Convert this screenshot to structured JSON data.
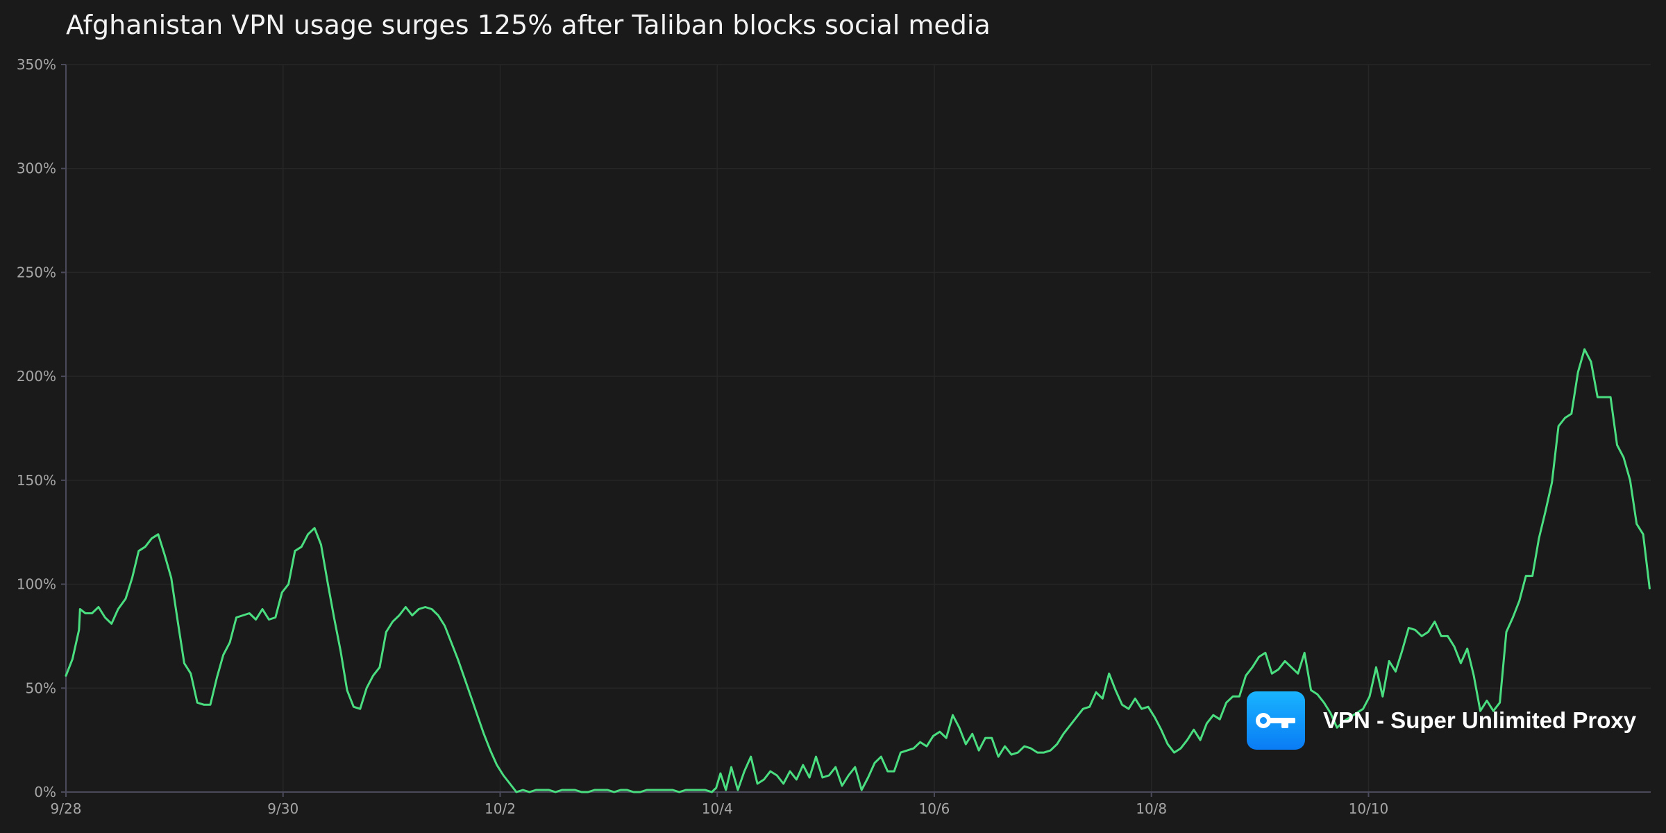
{
  "title": "Afghanistan VPN usage surges 125% after Taliban blocks social media",
  "brand": {
    "name": "VPN - Super Unlimited Proxy",
    "icon": "key-icon",
    "colors": {
      "top": "#19b4ff",
      "bottom": "#0a7cf5"
    }
  },
  "colors": {
    "background": "#1a1a1a",
    "line": "#4ade80",
    "grid": "#262626",
    "axis": "#4a4a5a",
    "tick_text": "#a6a6a6",
    "title_text": "#f2f2f2"
  },
  "chart_data": {
    "type": "line",
    "title": "Afghanistan VPN usage surges 125% after Taliban blocks social media",
    "xlabel": "",
    "ylabel": "",
    "xlim": [
      0,
      14.6
    ],
    "ylim": [
      0,
      350
    ],
    "grid": true,
    "legend": "none",
    "x_ticks": [
      {
        "value": 0,
        "label": "9/28"
      },
      {
        "value": 2,
        "label": "9/30"
      },
      {
        "value": 4,
        "label": "10/2"
      },
      {
        "value": 6,
        "label": "10/4"
      },
      {
        "value": 8,
        "label": "10/6"
      },
      {
        "value": 10,
        "label": "10/8"
      },
      {
        "value": 12,
        "label": "10/10"
      }
    ],
    "y_ticks": [
      {
        "value": 0,
        "label": "0%"
      },
      {
        "value": 50,
        "label": "50%"
      },
      {
        "value": 100,
        "label": "100%"
      },
      {
        "value": 150,
        "label": "150%"
      },
      {
        "value": 200,
        "label": "200%"
      },
      {
        "value": 250,
        "label": "250%"
      },
      {
        "value": 300,
        "label": "300%"
      },
      {
        "value": 350,
        "label": "350%"
      }
    ],
    "series": [
      {
        "values": [
          [
            0.0,
            56
          ],
          [
            0.06,
            64
          ],
          [
            0.12,
            78
          ],
          [
            0.13,
            88
          ],
          [
            0.18,
            86
          ],
          [
            0.24,
            86
          ],
          [
            0.3,
            89
          ],
          [
            0.36,
            84
          ],
          [
            0.42,
            81
          ],
          [
            0.48,
            88
          ],
          [
            0.55,
            93
          ],
          [
            0.61,
            103
          ],
          [
            0.67,
            116
          ],
          [
            0.73,
            118
          ],
          [
            0.79,
            122
          ],
          [
            0.85,
            124
          ],
          [
            0.91,
            114
          ],
          [
            0.97,
            103
          ],
          [
            1.03,
            82
          ],
          [
            1.09,
            62
          ],
          [
            1.15,
            57
          ],
          [
            1.21,
            43
          ],
          [
            1.27,
            42
          ],
          [
            1.33,
            42
          ],
          [
            1.39,
            55
          ],
          [
            1.45,
            66
          ],
          [
            1.51,
            72
          ],
          [
            1.57,
            84
          ],
          [
            1.63,
            85
          ],
          [
            1.69,
            86
          ],
          [
            1.75,
            83
          ],
          [
            1.81,
            88
          ],
          [
            1.87,
            83
          ],
          [
            1.93,
            84
          ],
          [
            1.99,
            96
          ],
          [
            2.05,
            100
          ],
          [
            2.11,
            116
          ],
          [
            2.17,
            118
          ],
          [
            2.23,
            124
          ],
          [
            2.29,
            127
          ],
          [
            2.35,
            119
          ],
          [
            2.41,
            101
          ],
          [
            2.47,
            84
          ],
          [
            2.53,
            68
          ],
          [
            2.59,
            49
          ],
          [
            2.65,
            41
          ],
          [
            2.71,
            40
          ],
          [
            2.77,
            50
          ],
          [
            2.83,
            56
          ],
          [
            2.89,
            60
          ],
          [
            2.95,
            77
          ],
          [
            3.01,
            82
          ],
          [
            3.07,
            85
          ],
          [
            3.13,
            89
          ],
          [
            3.19,
            85
          ],
          [
            3.25,
            88
          ],
          [
            3.31,
            89
          ],
          [
            3.37,
            88
          ],
          [
            3.43,
            85
          ],
          [
            3.49,
            80
          ],
          [
            3.55,
            72
          ],
          [
            3.61,
            64
          ],
          [
            3.67,
            55
          ],
          [
            3.73,
            46
          ],
          [
            3.79,
            37
          ],
          [
            3.85,
            28
          ],
          [
            3.91,
            20
          ],
          [
            3.97,
            13
          ],
          [
            4.03,
            8
          ],
          [
            4.09,
            4
          ],
          [
            4.15,
            0
          ],
          [
            4.21,
            1
          ],
          [
            4.27,
            0
          ],
          [
            4.33,
            1
          ],
          [
            4.39,
            1
          ],
          [
            4.45,
            1
          ],
          [
            4.51,
            0
          ],
          [
            4.57,
            1
          ],
          [
            4.63,
            1
          ],
          [
            4.69,
            1
          ],
          [
            4.75,
            0
          ],
          [
            4.81,
            0
          ],
          [
            4.87,
            1
          ],
          [
            4.93,
            1
          ],
          [
            4.99,
            1
          ],
          [
            5.05,
            0
          ],
          [
            5.11,
            1
          ],
          [
            5.17,
            1
          ],
          [
            5.23,
            0
          ],
          [
            5.29,
            0
          ],
          [
            5.35,
            1
          ],
          [
            5.41,
            1
          ],
          [
            5.47,
            1
          ],
          [
            5.53,
            1
          ],
          [
            5.59,
            1
          ],
          [
            5.65,
            0
          ],
          [
            5.71,
            1
          ],
          [
            5.77,
            1
          ],
          [
            5.83,
            1
          ],
          [
            5.89,
            1
          ],
          [
            5.95,
            0
          ],
          [
            5.99,
            2
          ],
          [
            6.03,
            9
          ],
          [
            6.08,
            1
          ],
          [
            6.13,
            12
          ],
          [
            6.19,
            1
          ],
          [
            6.25,
            10
          ],
          [
            6.31,
            17
          ],
          [
            6.37,
            4
          ],
          [
            6.43,
            6
          ],
          [
            6.49,
            10
          ],
          [
            6.55,
            8
          ],
          [
            6.61,
            4
          ],
          [
            6.67,
            10
          ],
          [
            6.73,
            6
          ],
          [
            6.79,
            13
          ],
          [
            6.85,
            7
          ],
          [
            6.91,
            17
          ],
          [
            6.97,
            7
          ],
          [
            7.03,
            8
          ],
          [
            7.09,
            12
          ],
          [
            7.15,
            3
          ],
          [
            7.21,
            8
          ],
          [
            7.27,
            12
          ],
          [
            7.33,
            1
          ],
          [
            7.39,
            7
          ],
          [
            7.45,
            14
          ],
          [
            7.51,
            17
          ],
          [
            7.57,
            10
          ],
          [
            7.63,
            10
          ],
          [
            7.69,
            19
          ],
          [
            7.75,
            20
          ],
          [
            7.81,
            21
          ],
          [
            7.87,
            24
          ],
          [
            7.93,
            22
          ],
          [
            7.99,
            27
          ],
          [
            8.05,
            29
          ],
          [
            8.11,
            26
          ],
          [
            8.17,
            37
          ],
          [
            8.23,
            31
          ],
          [
            8.29,
            23
          ],
          [
            8.35,
            28
          ],
          [
            8.41,
            20
          ],
          [
            8.47,
            26
          ],
          [
            8.53,
            26
          ],
          [
            8.59,
            17
          ],
          [
            8.65,
            22
          ],
          [
            8.71,
            18
          ],
          [
            8.77,
            19
          ],
          [
            8.83,
            22
          ],
          [
            8.89,
            21
          ],
          [
            8.95,
            19
          ],
          [
            9.01,
            19
          ],
          [
            9.07,
            20
          ],
          [
            9.13,
            23
          ],
          [
            9.19,
            28
          ],
          [
            9.25,
            32
          ],
          [
            9.31,
            36
          ],
          [
            9.37,
            40
          ],
          [
            9.43,
            41
          ],
          [
            9.49,
            48
          ],
          [
            9.55,
            45
          ],
          [
            9.61,
            57
          ],
          [
            9.67,
            49
          ],
          [
            9.73,
            42
          ],
          [
            9.79,
            40
          ],
          [
            9.85,
            45
          ],
          [
            9.91,
            40
          ],
          [
            9.97,
            41
          ],
          [
            10.03,
            36
          ],
          [
            10.09,
            30
          ],
          [
            10.15,
            23
          ],
          [
            10.21,
            19
          ],
          [
            10.27,
            21
          ],
          [
            10.33,
            25
          ],
          [
            10.39,
            30
          ],
          [
            10.45,
            25
          ],
          [
            10.51,
            33
          ],
          [
            10.57,
            37
          ],
          [
            10.63,
            35
          ],
          [
            10.69,
            43
          ],
          [
            10.75,
            46
          ],
          [
            10.81,
            46
          ],
          [
            10.87,
            56
          ],
          [
            10.93,
            60
          ],
          [
            10.99,
            65
          ],
          [
            11.05,
            67
          ],
          [
            11.11,
            57
          ],
          [
            11.17,
            59
          ],
          [
            11.23,
            63
          ],
          [
            11.29,
            60
          ],
          [
            11.35,
            57
          ],
          [
            11.41,
            67
          ],
          [
            11.47,
            49
          ],
          [
            11.53,
            47
          ],
          [
            11.59,
            43
          ],
          [
            11.65,
            38
          ],
          [
            11.71,
            31
          ],
          [
            11.77,
            34
          ],
          [
            11.83,
            36
          ],
          [
            11.89,
            38
          ],
          [
            11.95,
            40
          ],
          [
            12.01,
            46
          ],
          [
            12.07,
            60
          ],
          [
            12.13,
            46
          ],
          [
            12.19,
            63
          ],
          [
            12.25,
            58
          ],
          [
            12.31,
            68
          ],
          [
            12.37,
            79
          ],
          [
            12.43,
            78
          ],
          [
            12.49,
            75
          ],
          [
            12.55,
            77
          ],
          [
            12.61,
            82
          ],
          [
            12.67,
            75
          ],
          [
            12.73,
            75
          ],
          [
            12.79,
            70
          ],
          [
            12.85,
            62
          ],
          [
            12.91,
            69
          ],
          [
            12.97,
            56
          ],
          [
            13.03,
            39
          ],
          [
            13.09,
            44
          ],
          [
            13.15,
            39
          ],
          [
            13.21,
            43
          ],
          [
            13.27,
            77
          ],
          [
            13.33,
            84
          ],
          [
            13.39,
            92
          ],
          [
            13.45,
            104
          ],
          [
            13.51,
            104
          ],
          [
            13.57,
            122
          ],
          [
            13.63,
            135
          ],
          [
            13.69,
            149
          ],
          [
            13.75,
            176
          ],
          [
            13.81,
            180
          ],
          [
            13.87,
            182
          ],
          [
            13.93,
            202
          ],
          [
            13.99,
            213
          ],
          [
            14.05,
            207
          ],
          [
            14.11,
            190
          ],
          [
            14.17,
            190
          ],
          [
            14.23,
            190
          ],
          [
            14.29,
            167
          ],
          [
            14.35,
            161
          ],
          [
            14.41,
            150
          ],
          [
            14.47,
            129
          ],
          [
            14.53,
            124
          ],
          [
            14.59,
            98
          ]
        ]
      }
    ]
  }
}
